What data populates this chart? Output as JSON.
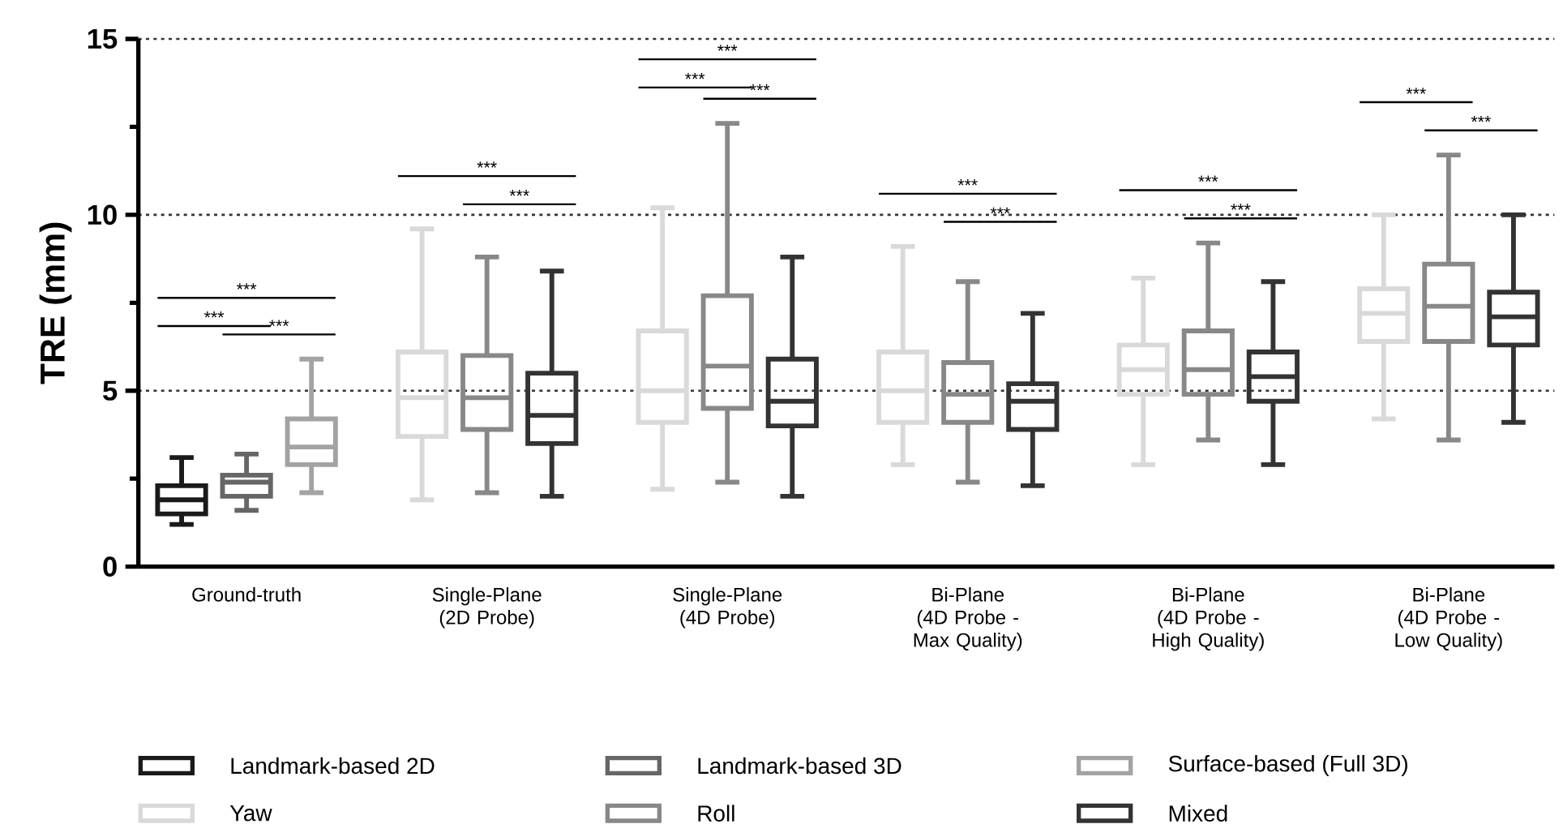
{
  "chart_data": {
    "type": "box",
    "ylabel": "TRE (mm)",
    "categories": [
      "Ground-truth",
      "Single-Plane (2D Probe)",
      "Single-Plane (4D Probe)",
      "Bi-Plane (4D Probe - Max Quality)",
      "Bi-Plane (4D Probe - High Quality)",
      "Bi-Plane (4D Probe - Low Quality)"
    ],
    "series": [
      {
        "name": "Landmark-based 2D",
        "color": "#1a1a1a",
        "boxes": [
          {
            "low": 1.2,
            "q1": 1.5,
            "median": 1.9,
            "q3": 2.3,
            "high": 3.1
          },
          null,
          null,
          null,
          null,
          null
        ]
      },
      {
        "name": "Landmark-based 3D",
        "color": "#666666",
        "boxes": [
          {
            "low": 1.6,
            "q1": 2.0,
            "median": 2.4,
            "q3": 2.6,
            "high": 3.2
          },
          null,
          null,
          null,
          null,
          null
        ]
      },
      {
        "name": "Surface-based (Full 3D)",
        "color": "#a3a3a3",
        "boxes": [
          {
            "low": 2.1,
            "q1": 2.9,
            "median": 3.4,
            "q3": 4.2,
            "high": 5.9
          },
          null,
          null,
          null,
          null,
          null
        ]
      },
      {
        "name": "Yaw",
        "color": "#d9d9d9",
        "boxes": [
          null,
          {
            "low": 1.9,
            "q1": 3.7,
            "median": 4.8,
            "q3": 6.1,
            "high": 9.6
          },
          {
            "low": 2.2,
            "q1": 4.1,
            "median": 5.0,
            "q3": 6.7,
            "high": 10.2
          },
          {
            "low": 2.9,
            "q1": 4.1,
            "median": 5.0,
            "q3": 6.1,
            "high": 9.1
          },
          {
            "low": 2.9,
            "q1": 4.9,
            "median": 5.6,
            "q3": 6.3,
            "high": 8.2
          },
          {
            "low": 4.2,
            "q1": 6.4,
            "median": 7.2,
            "q3": 7.9,
            "high": 10.0
          }
        ]
      },
      {
        "name": "Roll",
        "color": "#888888",
        "boxes": [
          null,
          {
            "low": 2.1,
            "q1": 3.9,
            "median": 4.8,
            "q3": 6.0,
            "high": 8.8
          },
          {
            "low": 2.4,
            "q1": 4.5,
            "median": 5.7,
            "q3": 7.7,
            "high": 12.6
          },
          {
            "low": 2.4,
            "q1": 4.1,
            "median": 4.9,
            "q3": 5.8,
            "high": 8.1
          },
          {
            "low": 3.6,
            "q1": 4.9,
            "median": 5.6,
            "q3": 6.7,
            "high": 9.2
          },
          {
            "low": 3.6,
            "q1": 6.4,
            "median": 7.4,
            "q3": 8.6,
            "high": 11.7
          }
        ]
      },
      {
        "name": "Mixed",
        "color": "#333333",
        "boxes": [
          null,
          {
            "low": 2.0,
            "q1": 3.5,
            "median": 4.3,
            "q3": 5.5,
            "high": 8.4
          },
          {
            "low": 2.0,
            "q1": 4.0,
            "median": 4.7,
            "q3": 5.9,
            "high": 8.8
          },
          {
            "low": 2.3,
            "q1": 3.9,
            "median": 4.7,
            "q3": 5.2,
            "high": 7.2
          },
          {
            "low": 2.9,
            "q1": 4.7,
            "median": 5.4,
            "q3": 6.1,
            "high": 8.1
          },
          {
            "low": 4.1,
            "q1": 6.3,
            "median": 7.1,
            "q3": 7.8,
            "high": 10.0
          }
        ]
      }
    ],
    "ylim": [
      0,
      15
    ],
    "yticks": [
      0,
      {
        "value": 2.5,
        "label": null
      },
      5,
      {
        "value": 7.5,
        "label": null
      },
      10,
      {
        "value": 12.5,
        "label": null
      },
      15
    ],
    "grid": "y",
    "legend": "bottom",
    "annotations": [
      "***",
      "***",
      "***",
      "***",
      "***",
      "***",
      "***",
      "***",
      "***",
      "***",
      "***",
      "***",
      "***",
      "***"
    ]
  }
}
